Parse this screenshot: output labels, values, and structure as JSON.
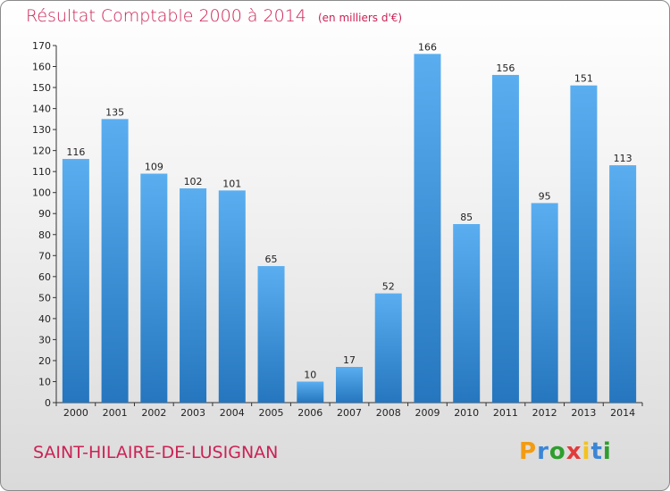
{
  "title": {
    "main": "Résultat Comptable 2000 à 2014",
    "sub": "(en milliers d'€)"
  },
  "commune": "SAINT-HILAIRE-DE-LUSIGNAN",
  "logo": {
    "letters": [
      "P",
      "r",
      "o",
      "x",
      "i",
      "t",
      "i"
    ],
    "colors": [
      "#f39c12",
      "#3a86d6",
      "#2e9e2e",
      "#e23a3a",
      "#f5c21b",
      "#3a86d6",
      "#2e9e2e"
    ]
  },
  "chart_data": {
    "type": "bar",
    "title": "Résultat Comptable 2000 à 2014",
    "subtitle": "(en milliers d'€)",
    "xlabel": "",
    "ylabel": "",
    "categories": [
      "2000",
      "2001",
      "2002",
      "2003",
      "2004",
      "2005",
      "2006",
      "2007",
      "2008",
      "2009",
      "2010",
      "2011",
      "2012",
      "2013",
      "2014"
    ],
    "values": [
      116,
      135,
      109,
      102,
      101,
      65,
      10,
      17,
      52,
      166,
      85,
      156,
      95,
      151,
      113
    ],
    "ylim": [
      0,
      170
    ],
    "yticks": [
      0,
      10,
      20,
      30,
      40,
      50,
      60,
      70,
      80,
      90,
      100,
      110,
      120,
      130,
      140,
      150,
      160,
      170
    ],
    "grid": false,
    "bar_color": "#4a9be0"
  }
}
